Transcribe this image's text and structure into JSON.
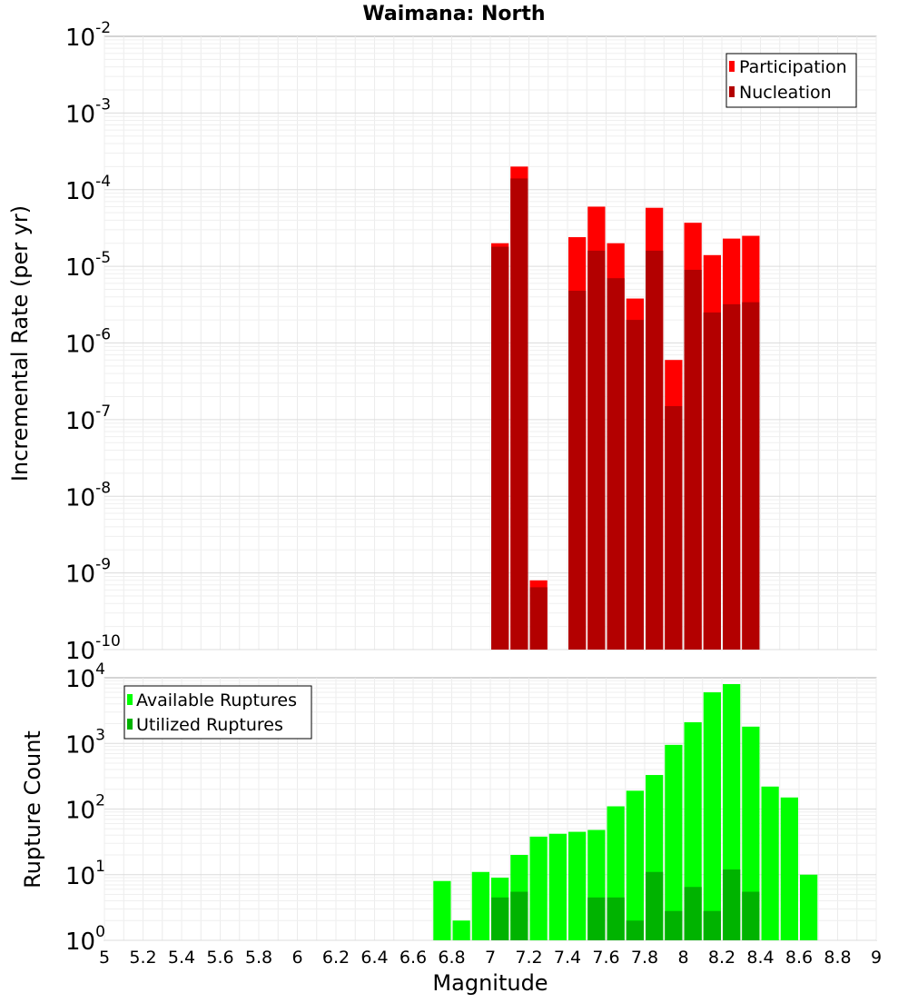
{
  "title": "Waimana: North",
  "chart_data": [
    {
      "type": "bar",
      "title": "Waimana: North",
      "ylabel": "Incremental Rate (per yr)",
      "xlabel": "",
      "y_scale": "log",
      "ylim": [
        1e-10,
        0.01
      ],
      "xlim": [
        5,
        9
      ],
      "grid": true,
      "legend_position": "top-right",
      "bin_width": 0.1,
      "x": [
        7.05,
        7.15,
        7.25,
        7.35,
        7.45,
        7.55,
        7.65,
        7.75,
        7.85,
        7.95,
        8.05,
        8.15,
        8.25,
        8.35
      ],
      "series": [
        {
          "name": "Participation",
          "color": "#ff0000",
          "values": [
            2e-05,
            0.0002,
            8e-10,
            null,
            2.4e-05,
            6e-05,
            2e-05,
            3.8e-06,
            5.8e-05,
            6e-07,
            3.7e-05,
            1.4e-05,
            2.3e-05,
            2.5e-05
          ]
        },
        {
          "name": "Nucleation",
          "color": "#b30000",
          "values": [
            1.8e-05,
            0.00014,
            6.5e-10,
            null,
            4.8e-06,
            1.6e-05,
            7e-06,
            2e-06,
            1.6e-05,
            1.5e-07,
            9e-06,
            2.5e-06,
            3.2e-06,
            3.4e-06
          ]
        }
      ]
    },
    {
      "type": "bar",
      "title": "",
      "ylabel": "Rupture Count",
      "xlabel": "Magnitude",
      "y_scale": "log",
      "ylim": [
        1,
        10000
      ],
      "xlim": [
        5,
        9
      ],
      "grid": true,
      "legend_position": "top-left",
      "bin_width": 0.1,
      "x": [
        6.75,
        6.85,
        6.95,
        7.05,
        7.15,
        7.25,
        7.35,
        7.45,
        7.55,
        7.65,
        7.75,
        7.85,
        7.95,
        8.05,
        8.15,
        8.25,
        8.35,
        8.45,
        8.55,
        8.65
      ],
      "x_ticks": [
        "5",
        "5.2",
        "5.4",
        "5.6",
        "5.8",
        "6",
        "6.2",
        "6.4",
        "6.6",
        "6.8",
        "7",
        "7.2",
        "7.4",
        "7.6",
        "7.8",
        "8",
        "8.2",
        "8.4",
        "8.6",
        "8.8",
        "9"
      ],
      "series": [
        {
          "name": "Available Ruptures",
          "color": "#00ff00",
          "values": [
            8,
            2,
            11,
            9,
            20,
            38,
            42,
            45,
            48,
            110,
            190,
            330,
            950,
            2100,
            6000,
            8000,
            1800,
            220,
            150,
            10
          ]
        },
        {
          "name": "Utilized Ruptures",
          "color": "#00b300",
          "values": [
            null,
            null,
            null,
            4.5,
            5.5,
            1,
            null,
            1,
            4.5,
            4.5,
            2,
            11,
            2.8,
            6.5,
            2.8,
            12,
            5.5,
            null,
            null,
            null
          ]
        }
      ]
    }
  ]
}
